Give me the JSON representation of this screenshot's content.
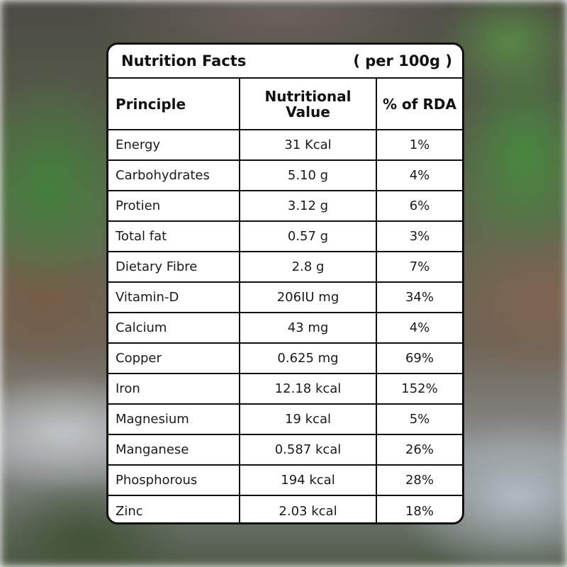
{
  "card": {
    "title": "Nutrition Facts",
    "per": "( per 100g )"
  },
  "table": {
    "headers": {
      "principle": "Principle",
      "value": "Nutritional Value",
      "rda": "% of RDA"
    },
    "rows": [
      {
        "name": "Energy",
        "value": "31 Kcal",
        "rda": "1%"
      },
      {
        "name": "Carbohydrates",
        "value": "5.10 g",
        "rda": "4%"
      },
      {
        "name": "Protien",
        "value": "3.12 g",
        "rda": "6%"
      },
      {
        "name": "Total fat",
        "value": "0.57 g",
        "rda": "3%"
      },
      {
        "name": "Dietary Fibre",
        "value": "2.8 g",
        "rda": "7%"
      },
      {
        "name": "Vitamin-D",
        "value": "206IU mg",
        "rda": "34%"
      },
      {
        "name": "Calcium",
        "value": "43 mg",
        "rda": "4%"
      },
      {
        "name": "Copper",
        "value": "0.625 mg",
        "rda": "69%"
      },
      {
        "name": "Iron",
        "value": "12.18 kcal",
        "rda": "152%"
      },
      {
        "name": "Magnesium",
        "value": "19 kcal",
        "rda": "5%"
      },
      {
        "name": "Manganese",
        "value": "0.587 kcal",
        "rda": "26%"
      },
      {
        "name": "Phosphorous",
        "value": "194 kcal",
        "rda": "28%"
      },
      {
        "name": "Zinc",
        "value": "2.03 kcal",
        "rda": "18%"
      }
    ]
  }
}
